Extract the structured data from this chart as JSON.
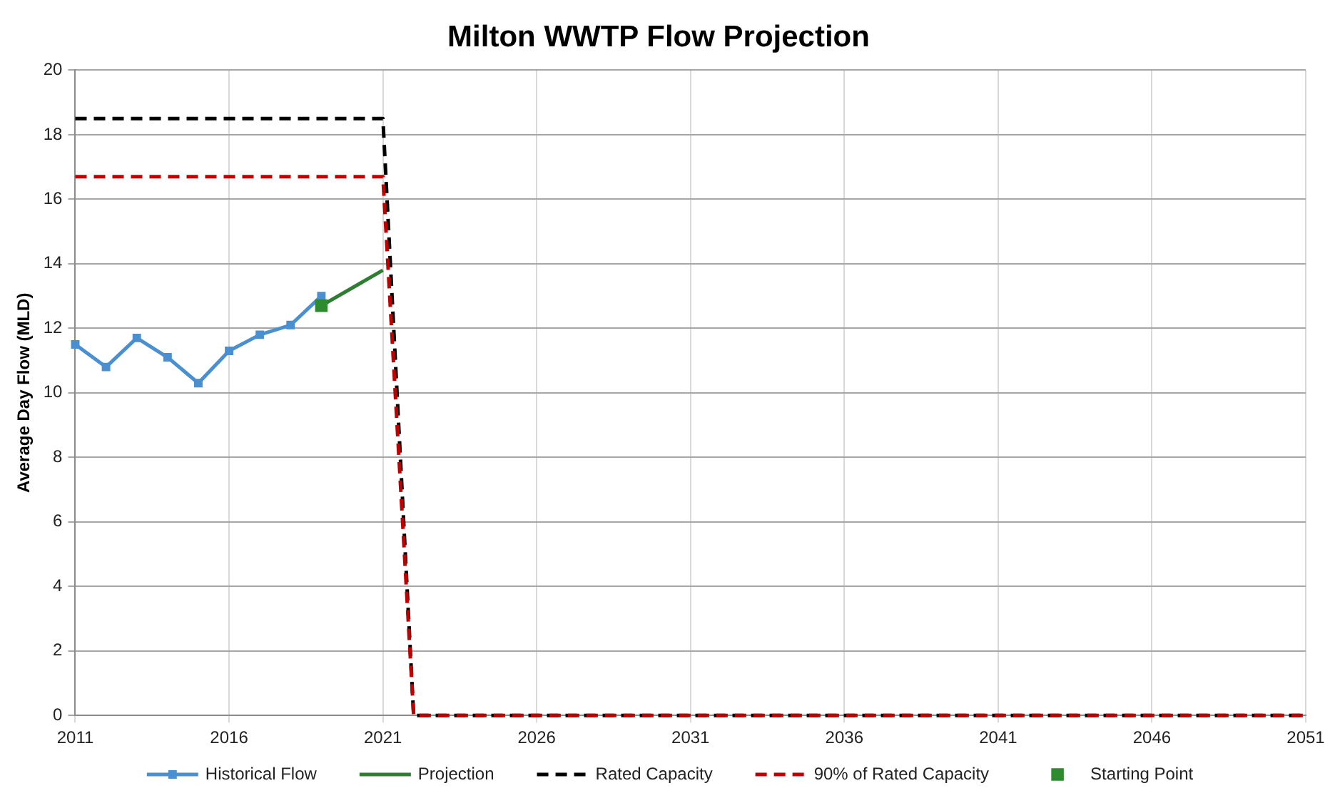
{
  "chart_data": {
    "type": "line",
    "title": "Milton WWTP Flow Projection",
    "ylabel": "Average Day Flow (MLD)",
    "xlim": [
      2011,
      2051
    ],
    "xticks": [
      2011,
      2016,
      2021,
      2026,
      2031,
      2036,
      2041,
      2046,
      2051
    ],
    "ylim": [
      0,
      20
    ],
    "yticks": [
      0,
      2,
      4,
      6,
      8,
      10,
      12,
      14,
      16,
      18,
      20
    ],
    "grid": true,
    "legend": "bottom",
    "series": [
      {
        "name": "Historical Flow",
        "type": "line",
        "color": "#4a8fd0",
        "marker": "square",
        "x": [
          2011,
          2012,
          2013,
          2014,
          2015,
          2016,
          2017,
          2018,
          2019
        ],
        "values": [
          11.5,
          10.8,
          11.7,
          11.1,
          10.3,
          11.3,
          11.8,
          12.1,
          13.0
        ]
      },
      {
        "name": "Projection",
        "type": "line",
        "color": "#2e7d32",
        "marker": "none",
        "x": [
          2019,
          2021
        ],
        "values": [
          12.7,
          13.8
        ]
      },
      {
        "name": "Rated Capacity",
        "type": "line",
        "color": "#000000",
        "line_style": "dashed",
        "marker": "none",
        "x": [
          2011,
          2021,
          2022,
          2051
        ],
        "values": [
          18.5,
          18.5,
          0,
          0
        ]
      },
      {
        "name": "90% of Rated Capacity",
        "type": "line",
        "color": "#c00000",
        "line_style": "dashed",
        "marker": "none",
        "x": [
          2011,
          2021,
          2022,
          2051
        ],
        "values": [
          16.7,
          16.7,
          0,
          0
        ]
      },
      {
        "name": "Starting Point",
        "type": "scatter",
        "color": "#2e8b2e",
        "marker": "square",
        "x": [
          2019
        ],
        "values": [
          12.7
        ]
      }
    ]
  }
}
